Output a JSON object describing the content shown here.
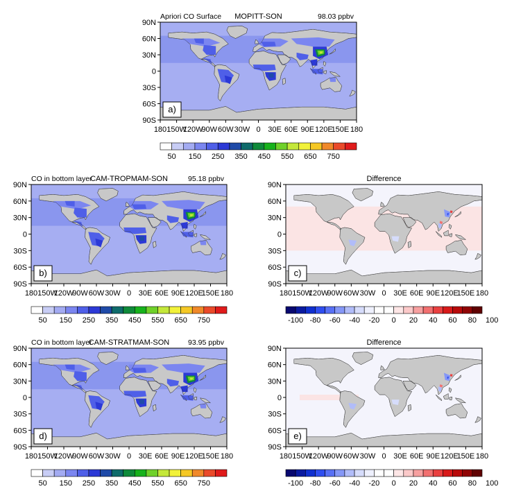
{
  "lat_labels": [
    "90N",
    "60N",
    "30N",
    "0",
    "30S",
    "60S",
    "90S"
  ],
  "lon_labels": [
    "180",
    "150W",
    "120W",
    "90W",
    "60W",
    "30W",
    "0",
    "30E",
    "60E",
    "90E",
    "120E",
    "150E",
    "180"
  ],
  "co_scale_labels": [
    "50",
    "150",
    "250",
    "350",
    "450",
    "550",
    "650",
    "750"
  ],
  "co_scale_colors": [
    "#ffffff",
    "#c8cdf5",
    "#a3abf2",
    "#7b86f0",
    "#4f5fe8",
    "#2c39d6",
    "#1f4aa8",
    "#0f6b6b",
    "#0f8a3a",
    "#17b21c",
    "#6fd12a",
    "#c4e83a",
    "#f2f23a",
    "#f5c825",
    "#f0892a",
    "#ea4a2a",
    "#e01b1b"
  ],
  "diff_scale_labels": [
    "-100",
    "-80",
    "-60",
    "-40",
    "-20",
    "0",
    "20",
    "40",
    "60",
    "80",
    "100"
  ],
  "diff_scale_colors": [
    "#080870",
    "#0a1aa0",
    "#1030d0",
    "#2f4ef0",
    "#5870f5",
    "#8597f7",
    "#b1bcf9",
    "#d6dcfb",
    "#eef0fd",
    "#ffffff",
    "#ffffff",
    "#fde6e6",
    "#fbc9c9",
    "#f7a0a0",
    "#f27070",
    "#ea4040",
    "#d81a1a",
    "#b80a0a",
    "#900505",
    "#600202"
  ],
  "panels": [
    {
      "id": "a",
      "letter": "a)",
      "title_left": "Apriori CO Surface",
      "title_center": "MOPITT-SON",
      "title_right": "98.03 ppbv",
      "kind": "co"
    },
    {
      "id": "b",
      "letter": "b)",
      "title_left": "CO in bottom layer",
      "title_center": "CAM-TROPMAM-SON",
      "title_right": "95.18 ppbv",
      "kind": "co"
    },
    {
      "id": "c",
      "letter": "c)",
      "title_left": "",
      "title_center": "Difference",
      "title_right": "",
      "kind": "diff"
    },
    {
      "id": "d",
      "letter": "d)",
      "title_left": "CO in bottom layer",
      "title_center": "CAM-STRATMAM-SON",
      "title_right": "93.95 ppbv",
      "kind": "co"
    },
    {
      "id": "e",
      "letter": "e)",
      "title_left": "",
      "title_center": "Difference",
      "title_right": "",
      "kind": "diff"
    }
  ],
  "colors": {
    "ocean_co": "#a6aef2",
    "ocean_co_high": "#8a96ee",
    "land_gray": "#c8c8c8",
    "ocean_diff": "#f4f4fc",
    "diff_pink": "#fbe4e4"
  }
}
